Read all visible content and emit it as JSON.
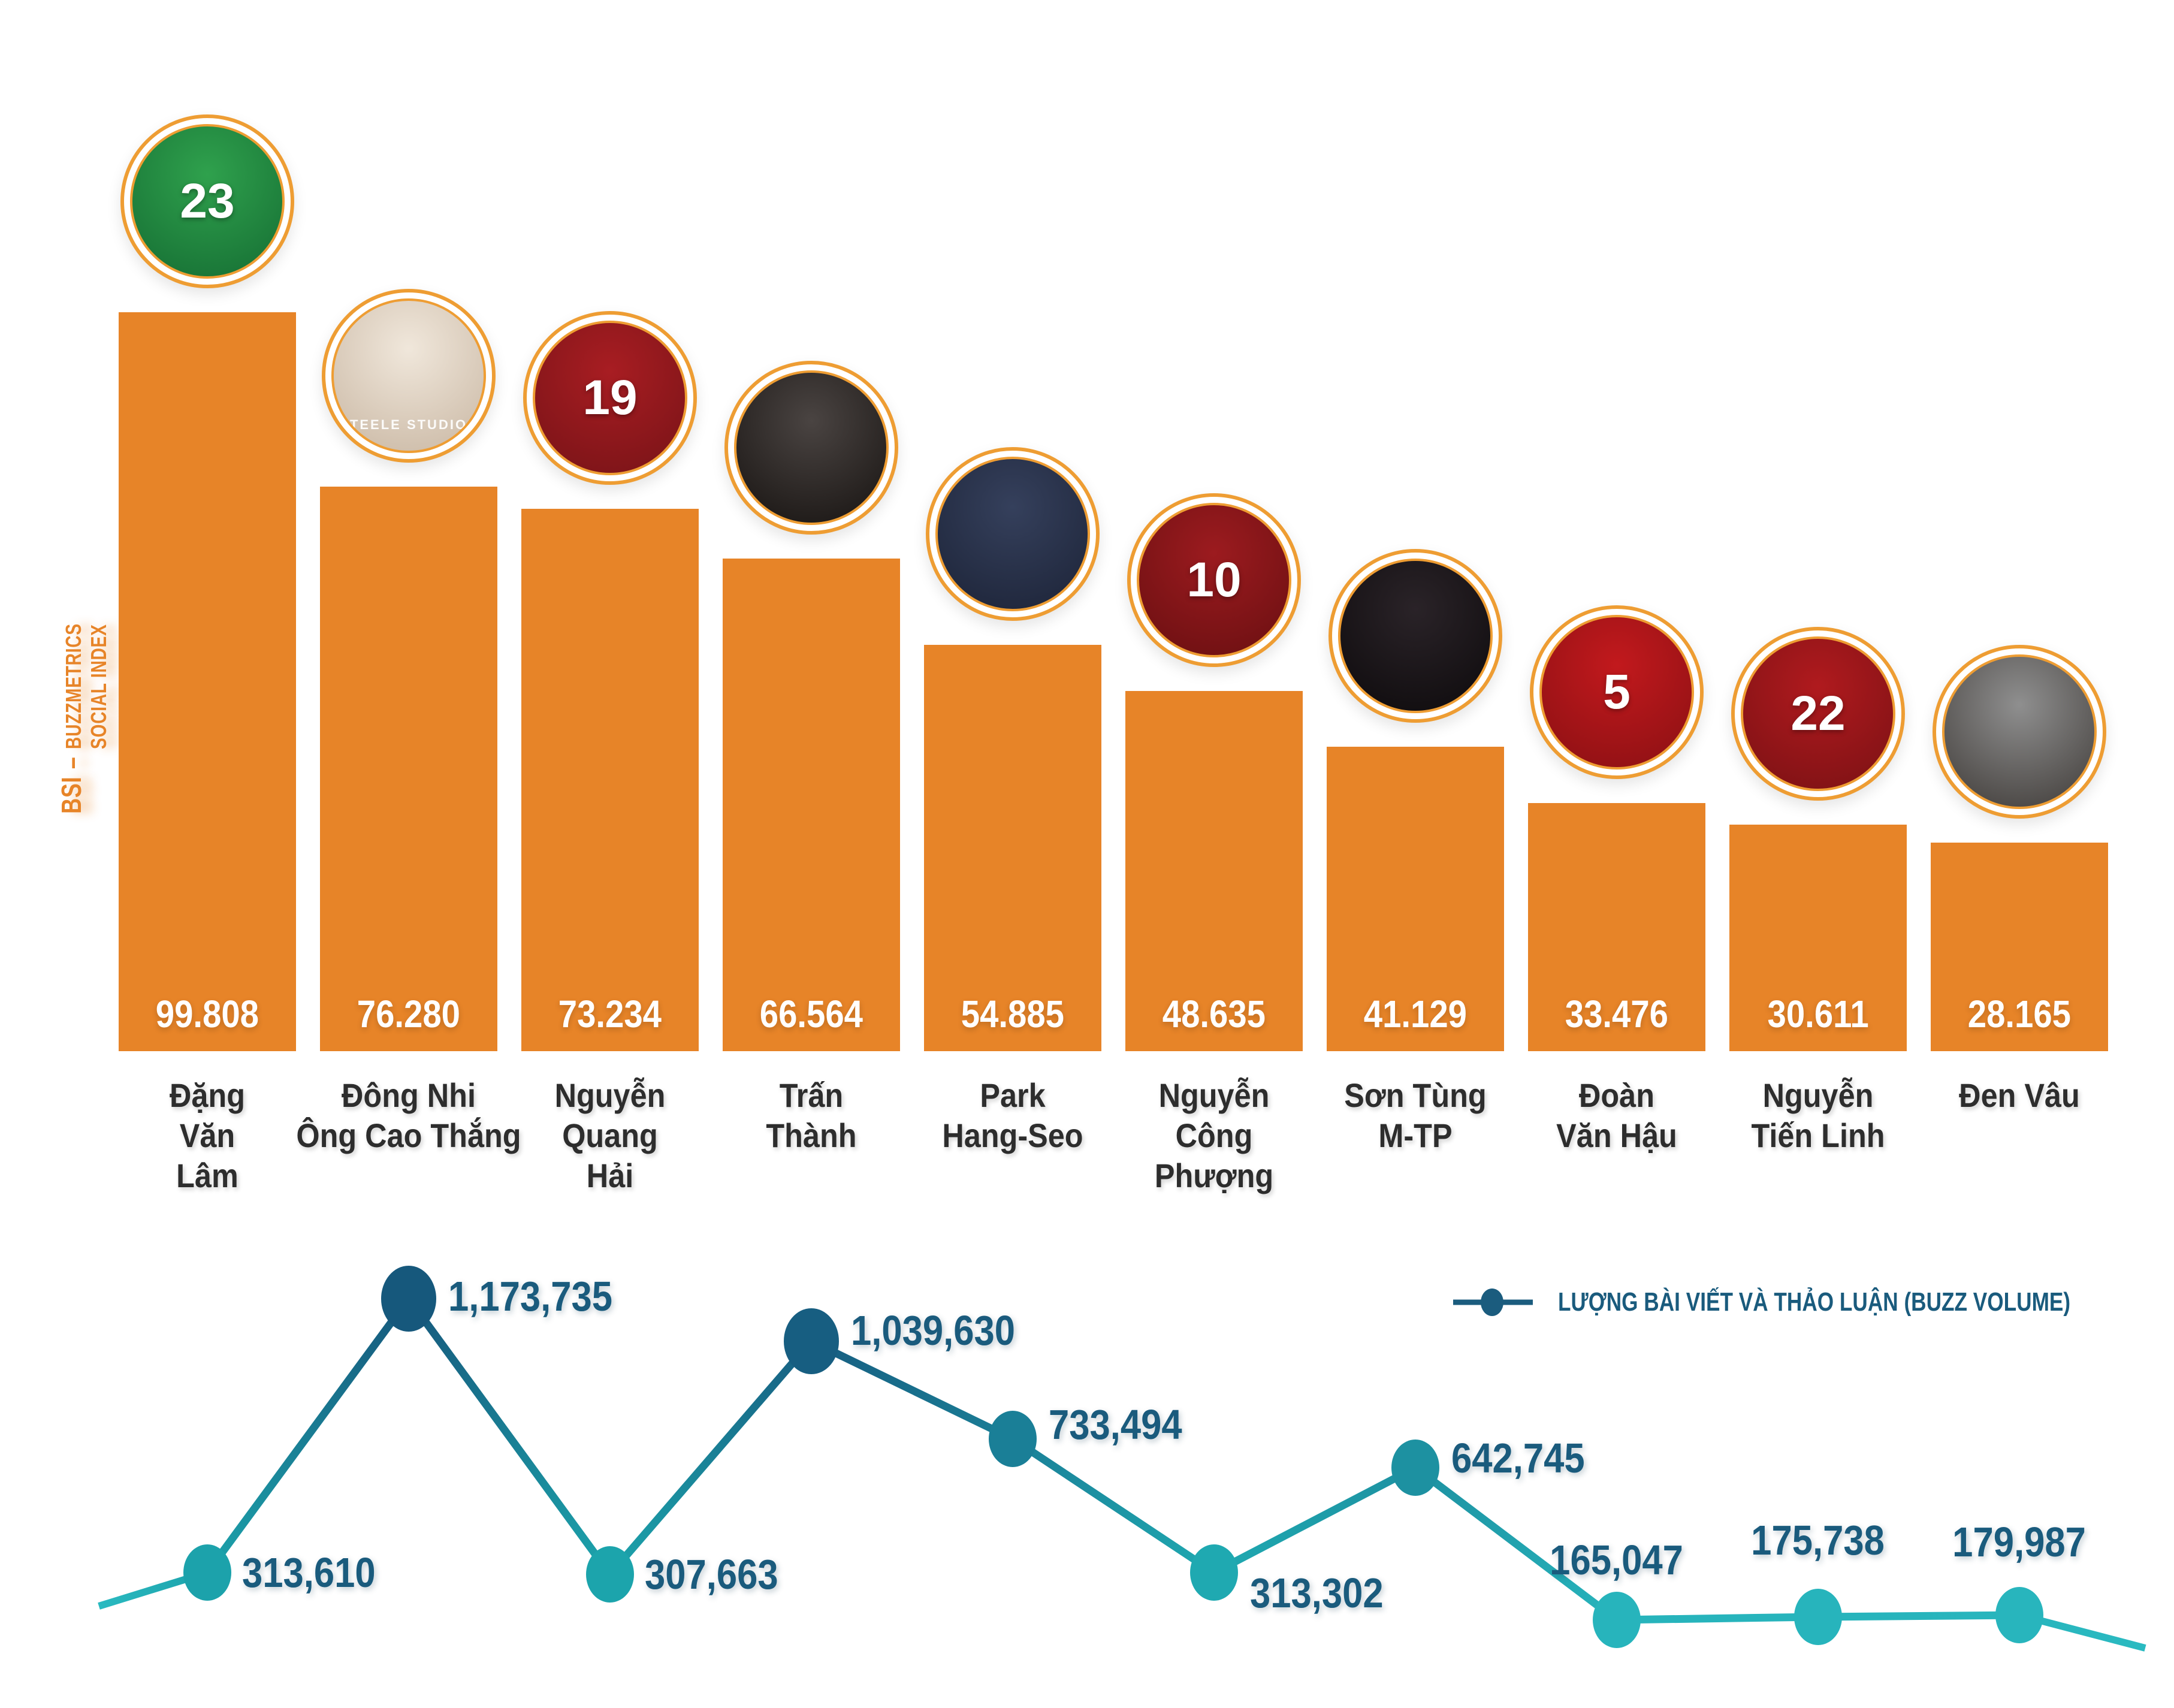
{
  "background": "#FFFFFF",
  "axis_label": {
    "bsi": "BSI",
    "dash": "–",
    "rest": "BUZZMETRICS SOCIAL INDEX",
    "full": "BSI – BUZZMETRICS SOCIAL INDEX",
    "color": "#E78428"
  },
  "legend": {
    "label": "LƯỢNG BÀI VIẾT VÀ THẢO LUẬN (BUZZ VOLUME)",
    "text_color": "#1A5B7D",
    "marker_color": "#1B5C7E"
  },
  "chart_data": {
    "type": "combo",
    "categories": [
      "Đặng Văn Lâm",
      "Đông Nhi Ông Cao Thắng",
      "Nguyễn Quang Hải",
      "Trấn Thành",
      "Park Hang-Seo",
      "Nguyễn Công Phượng",
      "Sơn Tùng M-TP",
      "Đoàn Văn Hậu",
      "Nguyễn Tiến Linh",
      "Đen Vâu"
    ],
    "category_lines": [
      [
        "Đặng",
        "Văn",
        "Lâm"
      ],
      [
        "Đông Nhi",
        "Ông Cao Thắng"
      ],
      [
        "Nguyễn",
        "Quang",
        "Hải"
      ],
      [
        "Trấn",
        "Thành"
      ],
      [
        "Park",
        "Hang-Seo"
      ],
      [
        "Nguyễn",
        "Công",
        "Phượng"
      ],
      [
        "Sơn Tùng",
        "M-TP"
      ],
      [
        "Đoàn",
        "Văn Hậu"
      ],
      [
        "Nguyễn",
        "Tiến Linh"
      ],
      [
        "Đen Vâu"
      ]
    ],
    "grid": false,
    "legend_position": "upper-right of line chart",
    "series": [
      {
        "name": "BSI",
        "type": "bar",
        "ylabel": "BSI – BUZZMETRICS SOCIAL INDEX",
        "color": "#E78428",
        "label_color": "#FFFFFF",
        "ylim": [
          0,
          100000
        ],
        "values": [
          99808,
          76280,
          73234,
          66564,
          54885,
          48635,
          41129,
          33476,
          30611,
          28165
        ],
        "labels": [
          "99.808",
          "76.280",
          "73.234",
          "66.564",
          "54.885",
          "48.635",
          "41.129",
          "33.476",
          "30.611",
          "28.165"
        ]
      },
      {
        "name": "LƯỢNG BÀI VIẾT VÀ THẢO LUẬN (BUZZ VOLUME)",
        "type": "line",
        "label_color": "#1A5B7D",
        "tail_color": "#2ABAC1",
        "ylim": [
          0,
          1250000
        ],
        "values": [
          313610,
          1173735,
          307663,
          1039630,
          733494,
          313302,
          642745,
          165047,
          175738,
          179987
        ],
        "labels": [
          "313,610",
          "1,173,735",
          "307,663",
          "1,039,630",
          "733,494",
          "313,302",
          "642,745",
          "165,047",
          "175,738",
          "179,987"
        ],
        "point_colors": [
          "#1CA2AB",
          "#16587C",
          "#1CA4AC",
          "#175E81",
          "#1A7F97",
          "#1FA9B1",
          "#1D91A1",
          "#27B4BC",
          "#27B4BC",
          "#28B5BD"
        ]
      }
    ]
  },
  "avatars": [
    {
      "person": "Đặng Văn Lâm",
      "jersey_number": "23",
      "bg": "#2FA14D",
      "bg2": "#156D33",
      "ring": "#EE9D33"
    },
    {
      "person": "Đông Nhi Ông Cao Thắng",
      "jersey_number": "",
      "watermark": "TEELE STUDIO",
      "bg": "#F0E7DB",
      "bg2": "#C9B7A3",
      "ring": "#EE9D33"
    },
    {
      "person": "Nguyễn Quang Hải",
      "jersey_number": "19",
      "bg": "#A81D22",
      "bg2": "#771317",
      "ring": "#EE9D33"
    },
    {
      "person": "Trấn Thành",
      "jersey_number": "",
      "bg": "#4A4442",
      "bg2": "#171311",
      "ring": "#EE9D33"
    },
    {
      "person": "Park Hang-Seo",
      "jersey_number": "",
      "bg": "#35405C",
      "bg2": "#1C2337",
      "ring": "#EE9D33"
    },
    {
      "person": "Nguyễn Công Phượng",
      "jersey_number": "10",
      "bg": "#9C1B1F",
      "bg2": "#690F11",
      "ring": "#EE9D33"
    },
    {
      "person": "Sơn Tùng M-TP",
      "jersey_number": "",
      "bg": "#2A2328",
      "bg2": "#0D0A0C",
      "ring": "#EE9D33"
    },
    {
      "person": "Đoàn Văn Hậu",
      "jersey_number": "5",
      "bg": "#C2191D",
      "bg2": "#8A1013",
      "ring": "#EE9D33"
    },
    {
      "person": "Nguyễn Tiến Linh",
      "jersey_number": "22",
      "bg": "#B01A1E",
      "bg2": "#7A1114",
      "ring": "#EE9D33"
    },
    {
      "person": "Đen Vâu",
      "jersey_number": "",
      "bg": "#8F8F8F",
      "bg2": "#3F3B38",
      "ring": "#EE9D33"
    }
  ]
}
